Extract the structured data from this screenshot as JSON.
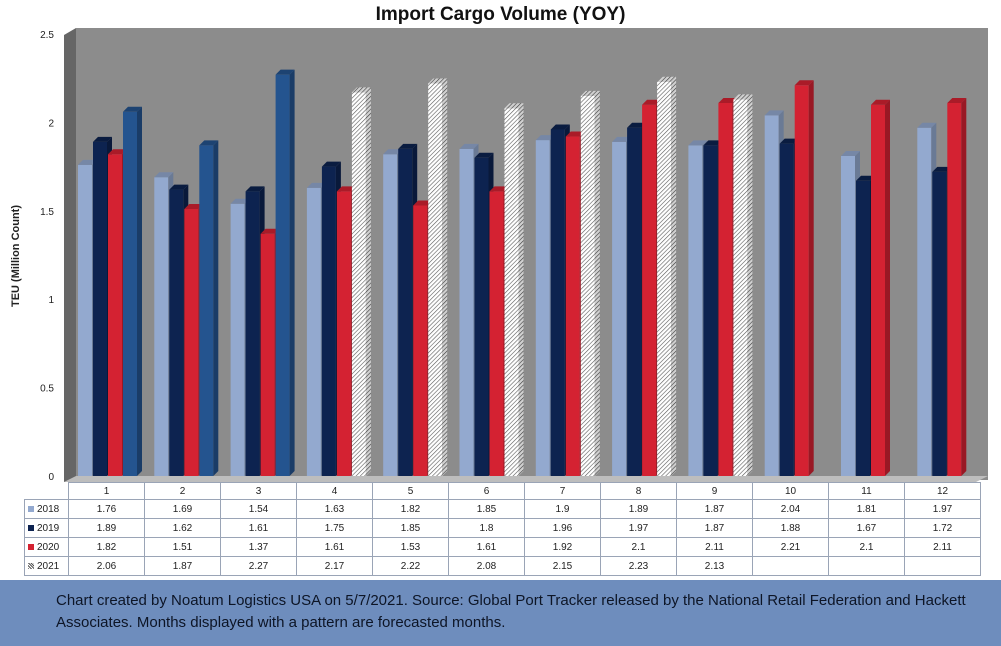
{
  "chart_data": {
    "type": "bar",
    "title": "Import Cargo Volume (YOY)",
    "ylabel": "TEU (Million Count)",
    "xlabel": "",
    "ylim": [
      0,
      2.5
    ],
    "yticks": [
      "0",
      "0.5",
      "1",
      "1.5",
      "2",
      "2.5"
    ],
    "categories": [
      "1",
      "2",
      "3",
      "4",
      "5",
      "6",
      "7",
      "8",
      "9",
      "10",
      "11",
      "12"
    ],
    "series": [
      {
        "name": "2018",
        "color": "#93a9cf",
        "values": [
          1.76,
          1.69,
          1.54,
          1.63,
          1.82,
          1.85,
          1.9,
          1.89,
          1.87,
          2.04,
          1.81,
          1.97
        ],
        "labels": [
          "1.76",
          "1.69",
          "1.54",
          "1.63",
          "1.82",
          "1.85",
          "1.9",
          "1.89",
          "1.87",
          "2.04",
          "1.81",
          "1.97"
        ]
      },
      {
        "name": "2019",
        "color": "#0d2350",
        "values": [
          1.89,
          1.62,
          1.61,
          1.75,
          1.85,
          1.8,
          1.96,
          1.97,
          1.87,
          1.88,
          1.67,
          1.72
        ],
        "labels": [
          "1.89",
          "1.62",
          "1.61",
          "1.75",
          "1.85",
          "1.8",
          "1.96",
          "1.97",
          "1.87",
          "1.88",
          "1.67",
          "1.72"
        ]
      },
      {
        "name": "2020",
        "color": "#d42232",
        "values": [
          1.82,
          1.51,
          1.37,
          1.61,
          1.53,
          1.61,
          1.92,
          2.1,
          2.11,
          2.21,
          2.1,
          2.11
        ],
        "labels": [
          "1.82",
          "1.51",
          "1.37",
          "1.61",
          "1.53",
          "1.61",
          "1.92",
          "2.1",
          "2.11",
          "2.21",
          "2.1",
          "2.11"
        ]
      },
      {
        "name": "2021",
        "color": "#24548f",
        "forecast_months": [
          "4",
          "5",
          "6",
          "7",
          "8",
          "9"
        ],
        "values": [
          2.06,
          1.87,
          2.27,
          2.17,
          2.22,
          2.08,
          2.15,
          2.23,
          2.13,
          null,
          null,
          null
        ],
        "labels": [
          "2.06",
          "1.87",
          "2.27",
          "2.17",
          "2.22",
          "2.08",
          "2.15",
          "2.23",
          "2.13",
          "",
          "",
          ""
        ]
      }
    ],
    "legend_placement": "data-table-left",
    "grid": false,
    "background": "#8c8c8c"
  },
  "footer": {
    "text": "Chart created by Noatum Logistics USA on 5/7/2021. Source: Global Port Tracker released by the National Retail Federation and Hackett Associates. Months displayed with a pattern are forecasted months."
  }
}
